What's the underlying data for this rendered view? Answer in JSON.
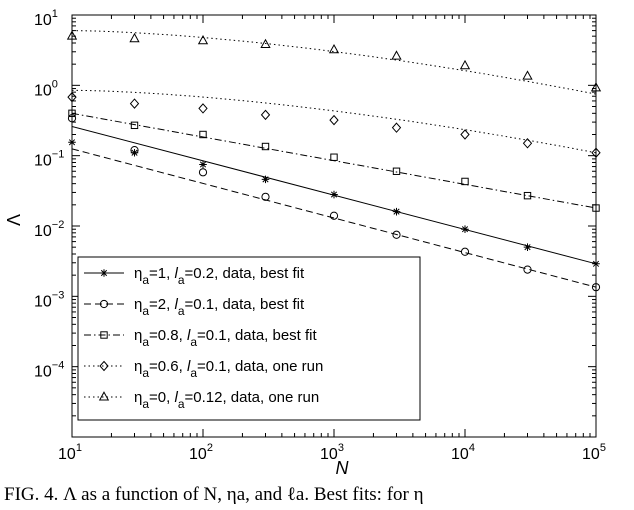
{
  "caption": "FIG. 4.  Λ as a function of N, ηa, and ℓa. Best fits: for η",
  "chart_data": {
    "type": "scatter",
    "xscale": "log",
    "yscale": "log",
    "xlim": [
      10,
      100000
    ],
    "ylim": [
      1e-05,
      10
    ],
    "xlabel": "N",
    "ylabel": "Λ",
    "legend_position": "bottom-left",
    "x_ticks": [
      {
        "value": 10,
        "base": "10",
        "exp": "1"
      },
      {
        "value": 100,
        "base": "10",
        "exp": "2"
      },
      {
        "value": 1000,
        "base": "10",
        "exp": "3"
      },
      {
        "value": 10000,
        "base": "10",
        "exp": "4"
      },
      {
        "value": 100000,
        "base": "10",
        "exp": "5"
      }
    ],
    "y_ticks": [
      {
        "value": 10,
        "base": "10",
        "exp": "1"
      },
      {
        "value": 1,
        "base": "10",
        "exp": "0"
      },
      {
        "value": 0.1,
        "base": "10",
        "exp": "−1"
      },
      {
        "value": 0.01,
        "base": "10",
        "exp": "−2"
      },
      {
        "value": 0.001,
        "base": "10",
        "exp": "−3"
      },
      {
        "value": 0.0001,
        "base": "10",
        "exp": "−4"
      }
    ],
    "series": [
      {
        "legend": {
          "eta": "η",
          "eta_sub": "a",
          "eta_val": "=1,",
          "l": "l",
          "l_sub": "a",
          "l_val": "=0.2, data, best fit"
        },
        "marker": "star",
        "line": "solid",
        "x": [
          10,
          30,
          100,
          300,
          1000,
          3000,
          10000,
          30000,
          100000
        ],
        "y": [
          0.155,
          0.11,
          0.075,
          0.046,
          0.028,
          0.016,
          0.009,
          0.005,
          0.0029
        ],
        "fit": {
          "x": [
            10,
            100000
          ],
          "y": [
            0.26,
            0.0029
          ]
        }
      },
      {
        "legend": {
          "eta": "η",
          "eta_sub": "a",
          "eta_val": "=2,",
          "l": "l",
          "l_sub": "a",
          "l_val": "=0.1, data, best fit"
        },
        "marker": "circle",
        "line": "dashed",
        "x": [
          10,
          30,
          100,
          300,
          1000,
          3000,
          10000,
          30000,
          100000
        ],
        "y": [
          0.34,
          0.12,
          0.058,
          0.026,
          0.014,
          0.0075,
          0.0043,
          0.0024,
          0.00135
        ],
        "fit": {
          "x": [
            10,
            100000
          ],
          "y": [
            0.125,
            0.00135
          ]
        }
      },
      {
        "legend": {
          "eta": "η",
          "eta_sub": "a",
          "eta_val": "=0.8,",
          "l": "l",
          "l_sub": "a",
          "l_val": "=0.1, data, best fit"
        },
        "marker": "square",
        "line": "dashdot",
        "x": [
          10,
          30,
          100,
          300,
          1000,
          3000,
          10000,
          30000,
          100000
        ],
        "y": [
          0.4,
          0.27,
          0.2,
          0.135,
          0.095,
          0.06,
          0.043,
          0.027,
          0.018
        ],
        "fit": {
          "x": [
            10,
            100000
          ],
          "y": [
            0.4,
            0.018
          ]
        }
      },
      {
        "legend": {
          "eta": "η",
          "eta_sub": "a",
          "eta_val": "=0.6,",
          "l": "l",
          "l_sub": "a",
          "l_val": "=0.1, data, one run"
        },
        "marker": "diamond",
        "line": "dotted",
        "x": [
          10,
          30,
          100,
          300,
          1000,
          3000,
          10000,
          30000,
          100000
        ],
        "y": [
          0.68,
          0.55,
          0.47,
          0.38,
          0.32,
          0.25,
          0.2,
          0.15,
          0.11
        ],
        "fit": {
          "x": [
            10,
            100000
          ],
          "y": [
            0.85,
            0.11
          ]
        }
      },
      {
        "legend": {
          "eta": "η",
          "eta_sub": "a",
          "eta_val": "=0,",
          "l": "l",
          "l_sub": "a",
          "l_val": "=0.12, data, one run"
        },
        "marker": "triangle",
        "line": "dotted",
        "x": [
          10,
          30,
          100,
          300,
          1000,
          3000,
          10000,
          30000,
          100000
        ],
        "y": [
          5.0,
          4.6,
          4.3,
          3.8,
          3.2,
          2.6,
          1.9,
          1.35,
          0.92
        ],
        "fit": {
          "x": [
            10,
            100000
          ],
          "y": [
            6.0,
            0.75
          ]
        }
      }
    ]
  }
}
